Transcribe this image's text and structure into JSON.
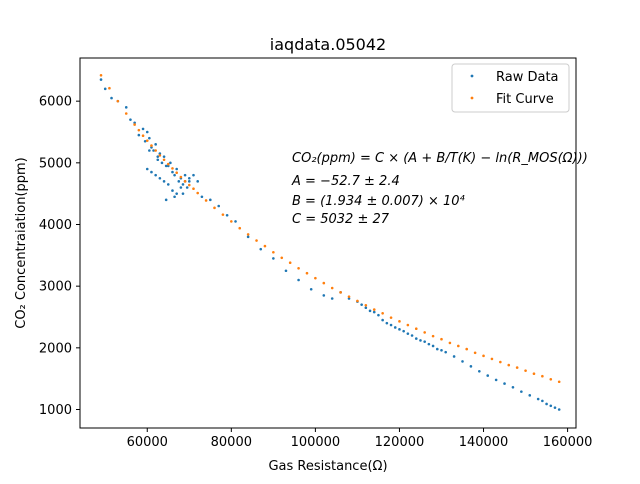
{
  "chart_data": {
    "type": "scatter",
    "title": "iaqdata.05042",
    "xlabel": "Gas Resistance(Ω)",
    "ylabel": "CO₂ Concentraiation(ppm)",
    "xlim": [
      44000,
      162000
    ],
    "ylim": [
      700,
      6700
    ],
    "x_ticks": [
      60000,
      80000,
      100000,
      120000,
      140000,
      160000
    ],
    "y_ticks": [
      1000,
      2000,
      3000,
      4000,
      5000,
      6000
    ],
    "x_tick_labels": [
      "60000",
      "80000",
      "100000",
      "120000",
      "140000",
      "160000"
    ],
    "y_tick_labels": [
      "1000",
      "2000",
      "3000",
      "4000",
      "5000",
      "6000"
    ],
    "legend_position": "top-right",
    "colors": {
      "raw": "#1f77b4",
      "fit": "#ff7f0e"
    },
    "series": [
      {
        "name": "Raw Data",
        "x": [
          49000,
          50000,
          51500,
          53000,
          55000,
          56000,
          57000,
          58000,
          59000,
          59500,
          60000,
          60500,
          61000,
          61500,
          62000,
          62500,
          63000,
          63500,
          64000,
          64500,
          65000,
          65500,
          66000,
          66500,
          67000,
          67500,
          68000,
          68500,
          69000,
          69500,
          70000,
          60000,
          61000,
          62000,
          63000,
          64000,
          65000,
          66000,
          67000,
          68000,
          69000,
          70000,
          71000,
          72000,
          60500,
          62500,
          64500,
          66500,
          68500,
          73000,
          75000,
          77000,
          79000,
          81000,
          84000,
          87000,
          90000,
          93000,
          96000,
          99000,
          102000,
          104000,
          106000,
          108000,
          110000,
          111000,
          112000,
          113000,
          114000,
          115000,
          116000,
          117000,
          118000,
          119000,
          120000,
          121000,
          122000,
          123000,
          124000,
          125000,
          126000,
          127000,
          128000,
          129000,
          130000,
          131000,
          133000,
          135000,
          137000,
          139000,
          141000,
          143000,
          145000,
          147000,
          149000,
          151000,
          153000,
          154000,
          155000,
          156000,
          157000,
          158000
        ],
        "y": [
          6350,
          6200,
          6050,
          6000,
          5900,
          5700,
          5650,
          5450,
          5550,
          5350,
          5500,
          5400,
          5250,
          5200,
          5300,
          5100,
          5150,
          5000,
          5100,
          4950,
          4950,
          5000,
          4850,
          4800,
          4900,
          4700,
          4750,
          4650,
          4800,
          4600,
          4700,
          4900,
          4850,
          4800,
          4750,
          4700,
          4650,
          4550,
          4500,
          4600,
          4700,
          4750,
          4800,
          4700,
          5200,
          5050,
          4400,
          4450,
          4500,
          4450,
          4400,
          4300,
          4150,
          4050,
          3800,
          3600,
          3450,
          3250,
          3100,
          2950,
          2850,
          2800,
          2900,
          2800,
          2750,
          2700,
          2650,
          2600,
          2580,
          2530,
          2450,
          2400,
          2370,
          2330,
          2300,
          2270,
          2230,
          2200,
          2150,
          2120,
          2100,
          2060,
          2030,
          1980,
          1960,
          1930,
          1860,
          1780,
          1700,
          1620,
          1550,
          1480,
          1420,
          1360,
          1290,
          1230,
          1170,
          1140,
          1090,
          1060,
          1030,
          1000
        ]
      },
      {
        "name": "Fit Curve",
        "x": [
          49000,
          51000,
          53000,
          55000,
          57000,
          58000,
          59000,
          60000,
          61000,
          62000,
          63000,
          64000,
          65000,
          66000,
          67000,
          68000,
          69000,
          70000,
          71000,
          72000,
          74000,
          76000,
          78000,
          80000,
          82000,
          84000,
          86000,
          88000,
          90000,
          92000,
          94000,
          96000,
          98000,
          100000,
          102000,
          104000,
          106000,
          108000,
          110000,
          112000,
          114000,
          116000,
          118000,
          120000,
          122000,
          124000,
          126000,
          128000,
          130000,
          132000,
          134000,
          136000,
          138000,
          140000,
          142000,
          144000,
          146000,
          148000,
          150000,
          152000,
          154000,
          156000,
          158000
        ],
        "y": [
          6420,
          6210,
          6000,
          5800,
          5620,
          5530,
          5440,
          5360,
          5280,
          5200,
          5120,
          5050,
          4980,
          4910,
          4840,
          4770,
          4700,
          4640,
          4580,
          4510,
          4390,
          4270,
          4160,
          4050,
          3940,
          3840,
          3740,
          3650,
          3550,
          3460,
          3380,
          3290,
          3210,
          3130,
          3050,
          2970,
          2900,
          2830,
          2760,
          2690,
          2620,
          2560,
          2490,
          2430,
          2370,
          2310,
          2250,
          2190,
          2140,
          2080,
          2030,
          1980,
          1920,
          1870,
          1820,
          1770,
          1720,
          1680,
          1630,
          1580,
          1540,
          1490,
          1450
        ]
      }
    ],
    "annotations": {
      "line1": "CO₂(ppm) = C × (A + B/T(K) − ln(R_MOS(Ω)))",
      "line2": "A = −52.7 ± 2.4",
      "line3": "B = (1.934 ± 0.007) × 10⁴",
      "line4": "C = 5032 ± 27"
    }
  }
}
